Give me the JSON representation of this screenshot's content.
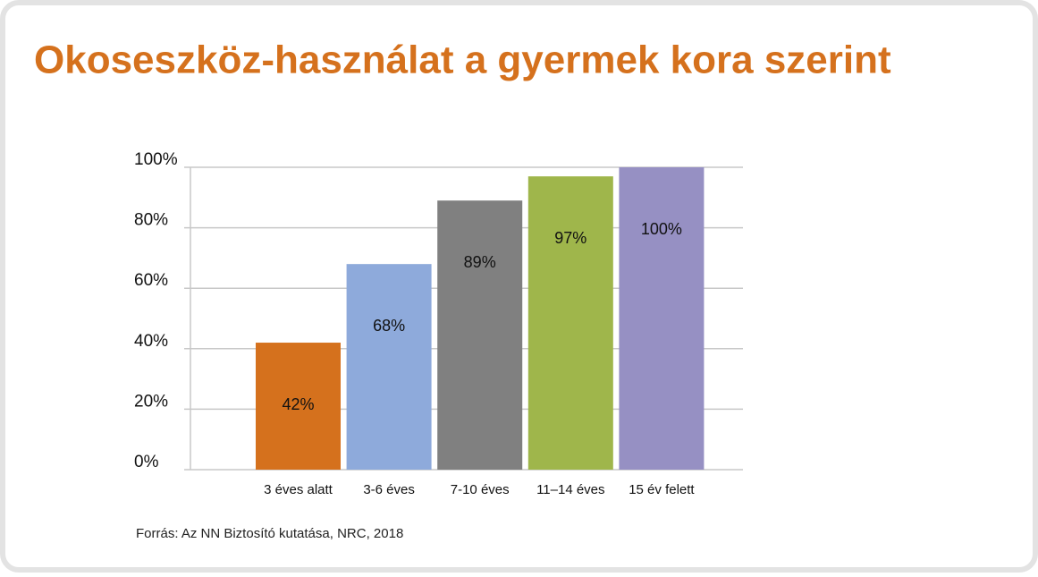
{
  "chart_data": {
    "type": "bar",
    "title": "Okoseszköz-használat a gyermek kora szerint",
    "categories": [
      "3 éves alatt",
      "3-6 éves",
      "7-10 éves",
      "11–14 éves",
      "15 év felett"
    ],
    "values": [
      42,
      68,
      89,
      97,
      100
    ],
    "value_labels": [
      "42%",
      "68%",
      "89%",
      "97%",
      "100%"
    ],
    "colors": [
      "#d5711d",
      "#8eaadb",
      "#808080",
      "#9fb64b",
      "#9690c3"
    ],
    "ylim": [
      0,
      100
    ],
    "yticks": [
      {
        "value": 0,
        "label": "0%"
      },
      {
        "value": 20,
        "label": "20%"
      },
      {
        "value": 40,
        "label": "40%"
      },
      {
        "value": 60,
        "label": "60%"
      },
      {
        "value": 80,
        "label": "80%"
      },
      {
        "value": 100,
        "label": "100%"
      }
    ],
    "grid": true,
    "source": "Forrás: Az NN Biztosító kutatása, NRC, 2018"
  }
}
